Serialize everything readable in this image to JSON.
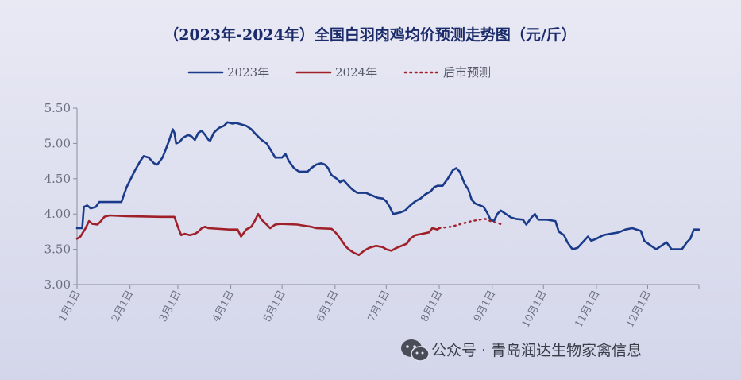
{
  "chart_data": {
    "type": "line",
    "title": "（2023年-2024年）全国白羽肉鸡均价预测走势图（元/斤）",
    "ylim": [
      3.0,
      5.5
    ],
    "yticks": [
      "3.00",
      "3.50",
      "4.00",
      "4.50",
      "5.00",
      "5.50"
    ],
    "ytick_values": [
      3.0,
      3.5,
      4.0,
      4.5,
      5.0,
      5.5
    ],
    "x_categories": [
      "1月1日",
      "2月1日",
      "3月1日",
      "4月1日",
      "5月1日",
      "6月1日",
      "7月1日",
      "8月1日",
      "9月1日",
      "10月1日",
      "11月1日",
      "12月1日"
    ],
    "x_day_of_year": [
      1,
      32,
      60,
      91,
      121,
      152,
      182,
      213,
      244,
      274,
      305,
      335
    ],
    "x_range_days": [
      1,
      365
    ],
    "legend_position": "top-center",
    "series": [
      {
        "name": "2023年",
        "color": "#1a3a8a",
        "style": "solid",
        "points": [
          [
            1,
            3.8
          ],
          [
            4,
            3.8
          ],
          [
            5,
            4.1
          ],
          [
            7,
            4.12
          ],
          [
            9,
            4.08
          ],
          [
            12,
            4.1
          ],
          [
            14,
            4.17
          ],
          [
            27,
            4.17
          ],
          [
            30,
            4.38
          ],
          [
            35,
            4.62
          ],
          [
            38,
            4.75
          ],
          [
            40,
            4.82
          ],
          [
            43,
            4.8
          ],
          [
            46,
            4.72
          ],
          [
            48,
            4.7
          ],
          [
            51,
            4.8
          ],
          [
            53,
            4.92
          ],
          [
            55,
            5.05
          ],
          [
            57,
            5.2
          ],
          [
            58,
            5.15
          ],
          [
            59,
            5.0
          ],
          [
            61,
            5.02
          ],
          [
            63,
            5.08
          ],
          [
            66,
            5.12
          ],
          [
            68,
            5.1
          ],
          [
            70,
            5.05
          ],
          [
            72,
            5.15
          ],
          [
            74,
            5.18
          ],
          [
            76,
            5.12
          ],
          [
            78,
            5.05
          ],
          [
            79,
            5.04
          ],
          [
            81,
            5.15
          ],
          [
            84,
            5.22
          ],
          [
            87,
            5.25
          ],
          [
            89,
            5.3
          ],
          [
            92,
            5.28
          ],
          [
            94,
            5.29
          ],
          [
            97,
            5.27
          ],
          [
            100,
            5.25
          ],
          [
            103,
            5.2
          ],
          [
            106,
            5.12
          ],
          [
            109,
            5.05
          ],
          [
            112,
            5.0
          ],
          [
            115,
            4.88
          ],
          [
            117,
            4.8
          ],
          [
            121,
            4.8
          ],
          [
            123,
            4.85
          ],
          [
            125,
            4.75
          ],
          [
            128,
            4.65
          ],
          [
            131,
            4.6
          ],
          [
            136,
            4.6
          ],
          [
            138,
            4.65
          ],
          [
            141,
            4.7
          ],
          [
            144,
            4.72
          ],
          [
            146,
            4.7
          ],
          [
            148,
            4.65
          ],
          [
            150,
            4.55
          ],
          [
            153,
            4.5
          ],
          [
            155,
            4.45
          ],
          [
            157,
            4.48
          ],
          [
            160,
            4.4
          ],
          [
            162,
            4.35
          ],
          [
            165,
            4.3
          ],
          [
            170,
            4.3
          ],
          [
            172,
            4.28
          ],
          [
            175,
            4.25
          ],
          [
            177,
            4.23
          ],
          [
            180,
            4.22
          ],
          [
            182,
            4.18
          ],
          [
            184,
            4.1
          ],
          [
            186,
            4.0
          ],
          [
            190,
            4.02
          ],
          [
            193,
            4.05
          ],
          [
            196,
            4.12
          ],
          [
            199,
            4.18
          ],
          [
            202,
            4.22
          ],
          [
            205,
            4.28
          ],
          [
            208,
            4.32
          ],
          [
            210,
            4.38
          ],
          [
            212,
            4.4
          ],
          [
            215,
            4.4
          ],
          [
            218,
            4.5
          ],
          [
            221,
            4.62
          ],
          [
            223,
            4.65
          ],
          [
            225,
            4.6
          ],
          [
            228,
            4.42
          ],
          [
            230,
            4.35
          ],
          [
            232,
            4.2
          ],
          [
            234,
            4.15
          ],
          [
            237,
            4.12
          ],
          [
            239,
            4.1
          ],
          [
            241,
            4.02
          ],
          [
            243,
            3.92
          ],
          [
            245,
            3.9
          ],
          [
            247,
            4.0
          ],
          [
            249,
            4.05
          ],
          [
            252,
            4.0
          ],
          [
            255,
            3.95
          ],
          [
            258,
            3.93
          ],
          [
            262,
            3.92
          ],
          [
            264,
            3.85
          ],
          [
            267,
            3.95
          ],
          [
            269,
            4.0
          ],
          [
            271,
            3.92
          ],
          [
            276,
            3.92
          ],
          [
            281,
            3.9
          ],
          [
            283,
            3.75
          ],
          [
            286,
            3.7
          ],
          [
            288,
            3.6
          ],
          [
            291,
            3.5
          ],
          [
            294,
            3.52
          ],
          [
            297,
            3.6
          ],
          [
            300,
            3.68
          ],
          [
            302,
            3.62
          ],
          [
            305,
            3.65
          ],
          [
            309,
            3.7
          ],
          [
            313,
            3.72
          ],
          [
            318,
            3.74
          ],
          [
            322,
            3.78
          ],
          [
            326,
            3.8
          ],
          [
            331,
            3.76
          ],
          [
            333,
            3.62
          ],
          [
            337,
            3.55
          ],
          [
            340,
            3.5
          ],
          [
            343,
            3.55
          ],
          [
            346,
            3.6
          ],
          [
            349,
            3.5
          ],
          [
            355,
            3.5
          ],
          [
            358,
            3.6
          ],
          [
            360,
            3.65
          ],
          [
            362,
            3.78
          ],
          [
            365,
            3.78
          ]
        ]
      },
      {
        "name": "2024年",
        "color": "#a0202a",
        "style": "solid",
        "points": [
          [
            1,
            3.65
          ],
          [
            3,
            3.68
          ],
          [
            6,
            3.8
          ],
          [
            8,
            3.9
          ],
          [
            10,
            3.86
          ],
          [
            13,
            3.85
          ],
          [
            15,
            3.9
          ],
          [
            17,
            3.96
          ],
          [
            20,
            3.98
          ],
          [
            30,
            3.97
          ],
          [
            50,
            3.96
          ],
          [
            58,
            3.96
          ],
          [
            60,
            3.82
          ],
          [
            62,
            3.7
          ],
          [
            64,
            3.72
          ],
          [
            67,
            3.7
          ],
          [
            70,
            3.72
          ],
          [
            72,
            3.75
          ],
          [
            74,
            3.8
          ],
          [
            76,
            3.82
          ],
          [
            78,
            3.8
          ],
          [
            90,
            3.78
          ],
          [
            95,
            3.78
          ],
          [
            97,
            3.68
          ],
          [
            100,
            3.78
          ],
          [
            103,
            3.82
          ],
          [
            105,
            3.9
          ],
          [
            107,
            4.0
          ],
          [
            109,
            3.92
          ],
          [
            112,
            3.85
          ],
          [
            114,
            3.8
          ],
          [
            117,
            3.85
          ],
          [
            120,
            3.86
          ],
          [
            130,
            3.85
          ],
          [
            135,
            3.83
          ],
          [
            138,
            3.82
          ],
          [
            141,
            3.8
          ],
          [
            150,
            3.79
          ],
          [
            153,
            3.72
          ],
          [
            156,
            3.62
          ],
          [
            158,
            3.55
          ],
          [
            160,
            3.5
          ],
          [
            163,
            3.45
          ],
          [
            166,
            3.42
          ],
          [
            169,
            3.48
          ],
          [
            172,
            3.52
          ],
          [
            176,
            3.55
          ],
          [
            180,
            3.53
          ],
          [
            182,
            3.5
          ],
          [
            185,
            3.48
          ],
          [
            188,
            3.52
          ],
          [
            191,
            3.55
          ],
          [
            194,
            3.58
          ],
          [
            196,
            3.65
          ],
          [
            199,
            3.7
          ],
          [
            203,
            3.72
          ],
          [
            207,
            3.74
          ],
          [
            209,
            3.8
          ],
          [
            212,
            3.78
          ],
          [
            213,
            3.8
          ]
        ]
      },
      {
        "name": "后市预测",
        "color": "#a0202a",
        "style": "dotted",
        "points": [
          [
            213,
            3.8
          ],
          [
            220,
            3.82
          ],
          [
            226,
            3.86
          ],
          [
            232,
            3.9
          ],
          [
            237,
            3.92
          ],
          [
            240,
            3.93
          ],
          [
            243,
            3.9
          ],
          [
            246,
            3.88
          ],
          [
            250,
            3.85
          ]
        ]
      }
    ]
  },
  "watermark": {
    "text": "公众号 · 青岛润达生物家禽信息",
    "icon": "wechat-icon"
  }
}
